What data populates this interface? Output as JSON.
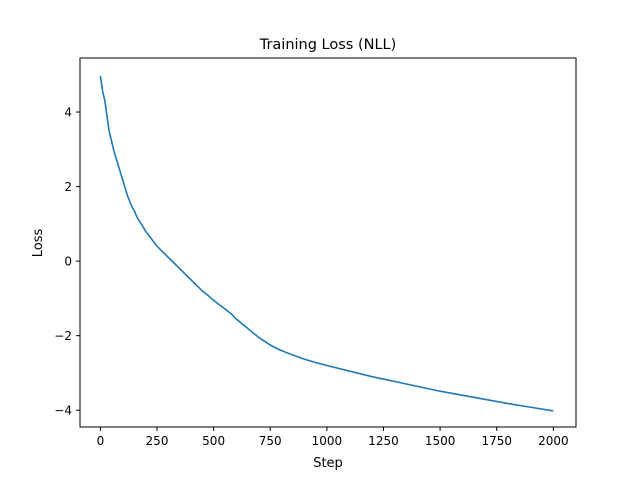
{
  "chart_data": {
    "type": "line",
    "title": "Training Loss (NLL)",
    "xlabel": "Step",
    "ylabel": "Loss",
    "xlim": [
      -90,
      2100
    ],
    "ylim": [
      -4.45,
      5.45
    ],
    "xticks": [
      0,
      250,
      500,
      750,
      1000,
      1250,
      1500,
      1750,
      2000
    ],
    "xtick_labels": [
      "0",
      "250",
      "500",
      "750",
      "1000",
      "1250",
      "1500",
      "1750",
      "2000"
    ],
    "yticks": [
      -4,
      -2,
      0,
      2,
      4
    ],
    "ytick_labels": [
      "−4",
      "−2",
      "0",
      "2",
      "4"
    ],
    "grid": false,
    "series": [
      {
        "color": "#1f77b4",
        "x": [
          0,
          10,
          20,
          30,
          40,
          50,
          60,
          70,
          80,
          90,
          100,
          110,
          120,
          130,
          140,
          150,
          160,
          170,
          180,
          190,
          200,
          225,
          250,
          275,
          300,
          325,
          350,
          375,
          400,
          425,
          450,
          475,
          500,
          525,
          550,
          575,
          600,
          625,
          650,
          675,
          700,
          725,
          750,
          775,
          800,
          850,
          900,
          950,
          1000,
          1100,
          1200,
          1300,
          1400,
          1500,
          1600,
          1700,
          1800,
          1900,
          2000
        ],
        "y": [
          4.97,
          4.55,
          4.3,
          3.85,
          3.45,
          3.2,
          2.95,
          2.75,
          2.55,
          2.35,
          2.15,
          1.95,
          1.75,
          1.6,
          1.45,
          1.35,
          1.2,
          1.1,
          1.0,
          0.9,
          0.8,
          0.6,
          0.4,
          0.25,
          0.1,
          -0.05,
          -0.2,
          -0.35,
          -0.5,
          -0.65,
          -0.8,
          -0.92,
          -1.05,
          -1.17,
          -1.28,
          -1.4,
          -1.55,
          -1.68,
          -1.8,
          -1.93,
          -2.05,
          -2.15,
          -2.25,
          -2.33,
          -2.4,
          -2.52,
          -2.63,
          -2.72,
          -2.8,
          -2.95,
          -3.1,
          -3.23,
          -3.36,
          -3.49,
          -3.6,
          -3.71,
          -3.82,
          -3.92,
          -4.02
        ]
      }
    ]
  }
}
